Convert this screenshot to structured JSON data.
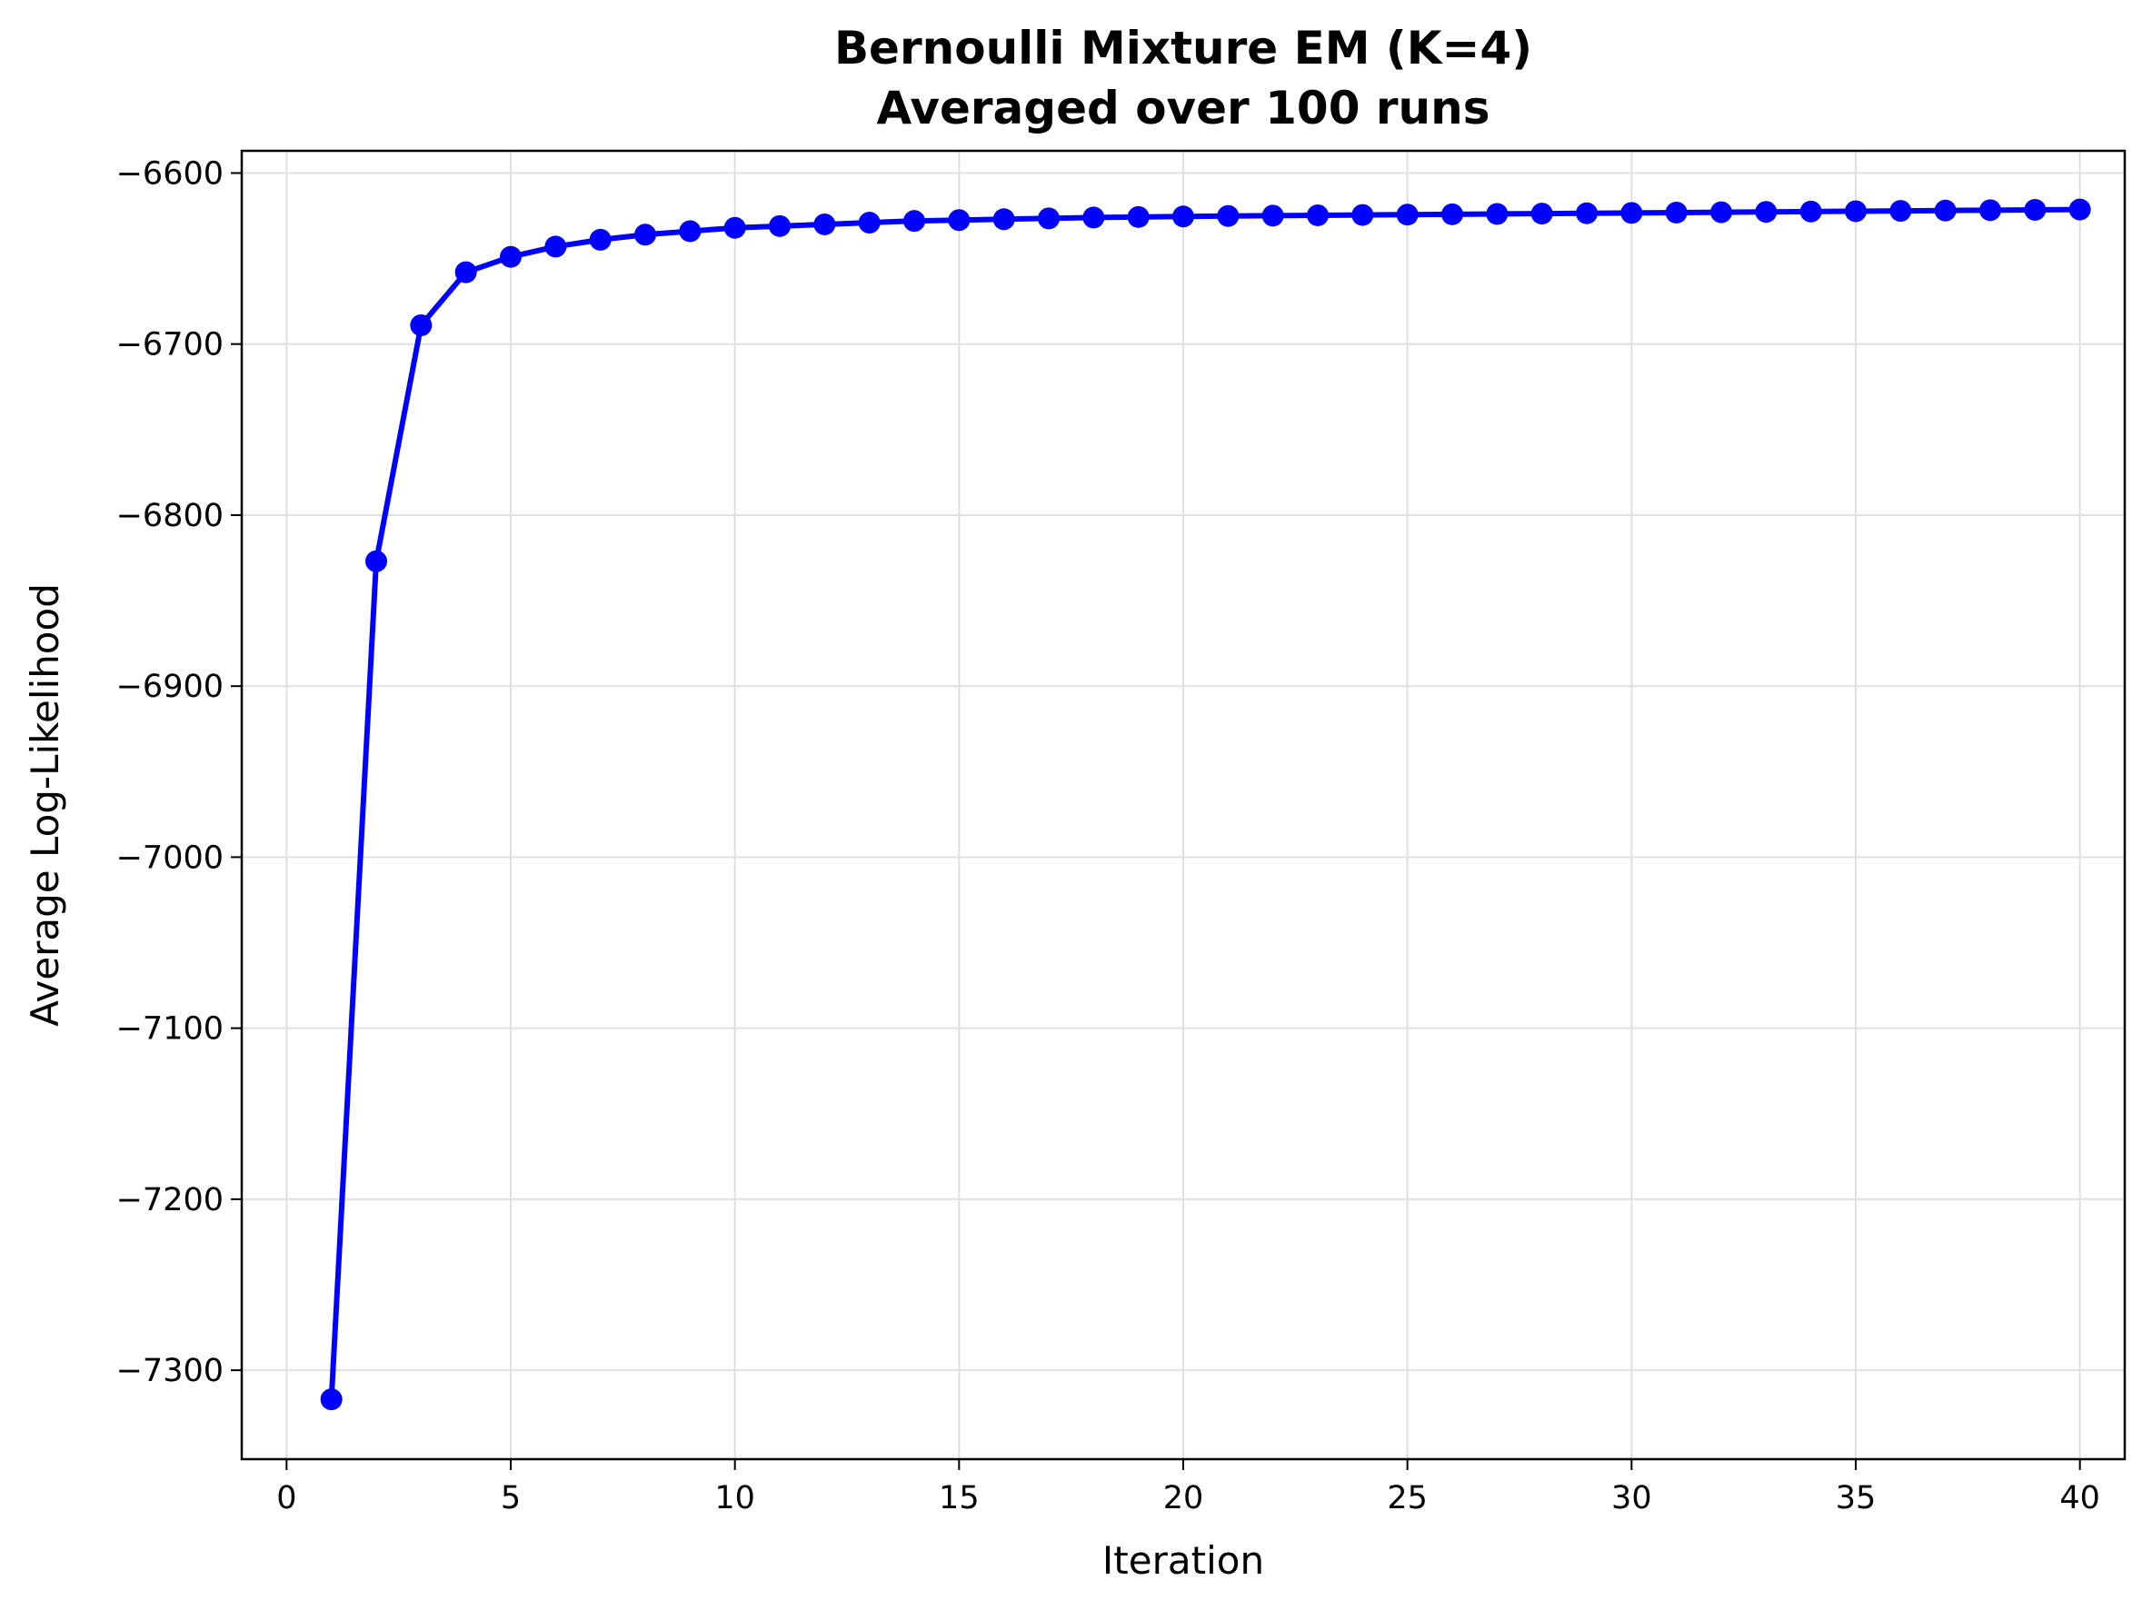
{
  "chart_data": {
    "type": "line",
    "title": "Bernoulli Mixture EM (K=4)",
    "subtitle": "Averaged over 100 runs",
    "xlabel": "Iteration",
    "ylabel": "Average Log-Likelihood",
    "xlim": [
      -1,
      41
    ],
    "ylim": [
      -7352,
      -6587
    ],
    "xticks": [
      0,
      5,
      10,
      15,
      20,
      25,
      30,
      35,
      40
    ],
    "xtick_labels": [
      "0",
      "5",
      "10",
      "15",
      "20",
      "25",
      "30",
      "35",
      "40"
    ],
    "yticks": [
      -7300,
      -7200,
      -7100,
      -7000,
      -6900,
      -6800,
      -6700,
      -6600
    ],
    "ytick_labels": [
      "−7300",
      "−7200",
      "−7100",
      "−7000",
      "−6900",
      "−6800",
      "−6700",
      "−6600"
    ],
    "grid": true,
    "series": [
      {
        "color": "#0000ff",
        "marker": "circle",
        "x": [
          1,
          2,
          3,
          4,
          5,
          6,
          7,
          8,
          9,
          10,
          11,
          12,
          13,
          14,
          15,
          16,
          17,
          18,
          19,
          20,
          21,
          22,
          23,
          24,
          25,
          26,
          27,
          28,
          29,
          30,
          31,
          32,
          33,
          34,
          35,
          36,
          37,
          38,
          39,
          40
        ],
        "y": [
          -7317,
          -6827,
          -6689,
          -6658,
          -6649,
          -6643,
          -6639,
          -6636,
          -6634,
          -6632,
          -6631,
          -6630,
          -6629,
          -6628,
          -6627.5,
          -6627,
          -6626.5,
          -6626,
          -6625.7,
          -6625.4,
          -6625.1,
          -6624.9,
          -6624.7,
          -6624.5,
          -6624.3,
          -6624.1,
          -6623.9,
          -6623.7,
          -6623.5,
          -6623.3,
          -6623.1,
          -6622.9,
          -6622.7,
          -6622.5,
          -6622.3,
          -6622.1,
          -6621.9,
          -6621.7,
          -6621.5,
          -6621.3
        ]
      }
    ],
    "colors": {
      "line": "#0000ff",
      "grid": "#e0e0e0",
      "axes": "#000000"
    }
  }
}
